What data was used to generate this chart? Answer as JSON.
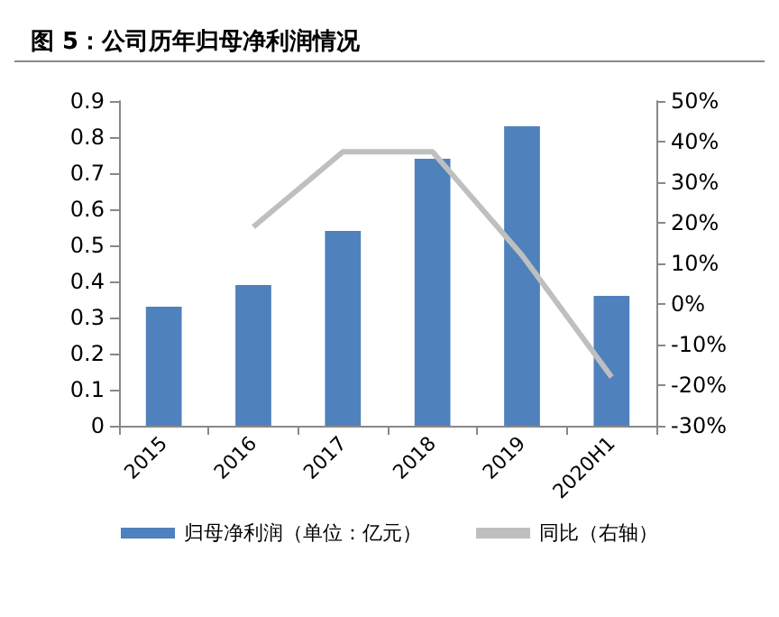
{
  "chart_data": {
    "type": "bar",
    "title": "图 5：公司历年归母净利润情况",
    "categories": [
      "2015",
      "2016",
      "2017",
      "2018",
      "2019",
      "2020H1"
    ],
    "series": [
      {
        "name": "归母净利润（单位：亿元）",
        "color": "#4f81bd",
        "values": [
          0.33,
          0.39,
          0.54,
          0.74,
          0.83,
          0.36
        ]
      },
      {
        "name": "同比（右轴）",
        "type": "line",
        "axis": "y2",
        "color": "#bfbfbf",
        "values": [
          null,
          19,
          37.5,
          37.5,
          12,
          -18
        ]
      }
    ],
    "ylim": [
      0,
      0.9
    ],
    "yticks": [
      0,
      0.1,
      0.2,
      0.3,
      0.4,
      0.5,
      0.6,
      0.7,
      0.8,
      0.9
    ],
    "y2lim": [
      -30,
      50
    ],
    "y2ticks": [
      {
        "value": -30,
        "label": "-30%"
      },
      {
        "value": -20,
        "label": "-20%"
      },
      {
        "value": -10,
        "label": "-10%"
      },
      {
        "value": 0,
        "label": "0%"
      },
      {
        "value": 10,
        "label": "10%"
      },
      {
        "value": 20,
        "label": "20%"
      },
      {
        "value": 30,
        "label": "30%"
      },
      {
        "value": 40,
        "label": "40%"
      },
      {
        "value": 50,
        "label": "50%"
      }
    ],
    "grid": false,
    "legend": "bottom",
    "marker": "none",
    "line_style": "solid"
  }
}
